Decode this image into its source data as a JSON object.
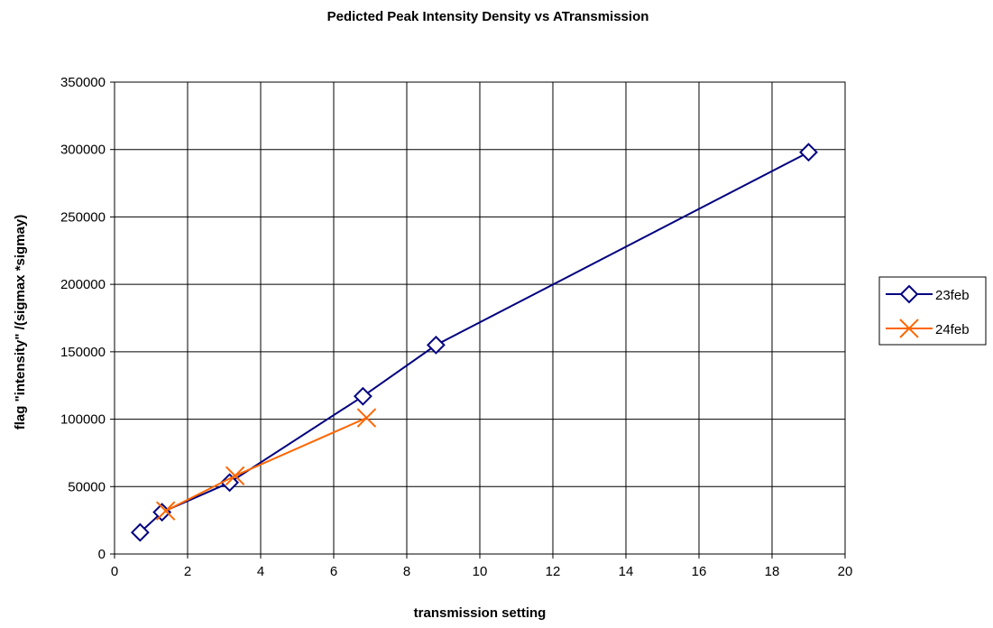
{
  "chart_data": {
    "type": "line",
    "title": "Pedicted Peak Intensity Density vs ATransmission",
    "xlabel": "transmission setting",
    "ylabel": "flag \"intensity\" /(sigmax *sigmay)",
    "xlim": [
      0,
      20
    ],
    "ylim": [
      0,
      350000
    ],
    "xticks": [
      "0",
      "2",
      "4",
      "6",
      "8",
      "10",
      "12",
      "14",
      "16",
      "18",
      "20"
    ],
    "yticks": [
      "0",
      "50000",
      "100000",
      "150000",
      "200000",
      "250000",
      "300000",
      "350000"
    ],
    "grid": true,
    "legend_position": "right",
    "series": [
      {
        "name": "23feb",
        "color": "#000080",
        "marker": "diamond",
        "x": [
          0.7,
          1.3,
          3.15,
          6.8,
          8.8,
          19.0
        ],
        "y": [
          16000,
          31000,
          53000,
          117000,
          155000,
          298000
        ]
      },
      {
        "name": "24feb",
        "color": "#ff6600",
        "marker": "x",
        "x": [
          1.4,
          3.3,
          6.9
        ],
        "y": [
          32000,
          58000,
          101000
        ]
      }
    ]
  }
}
